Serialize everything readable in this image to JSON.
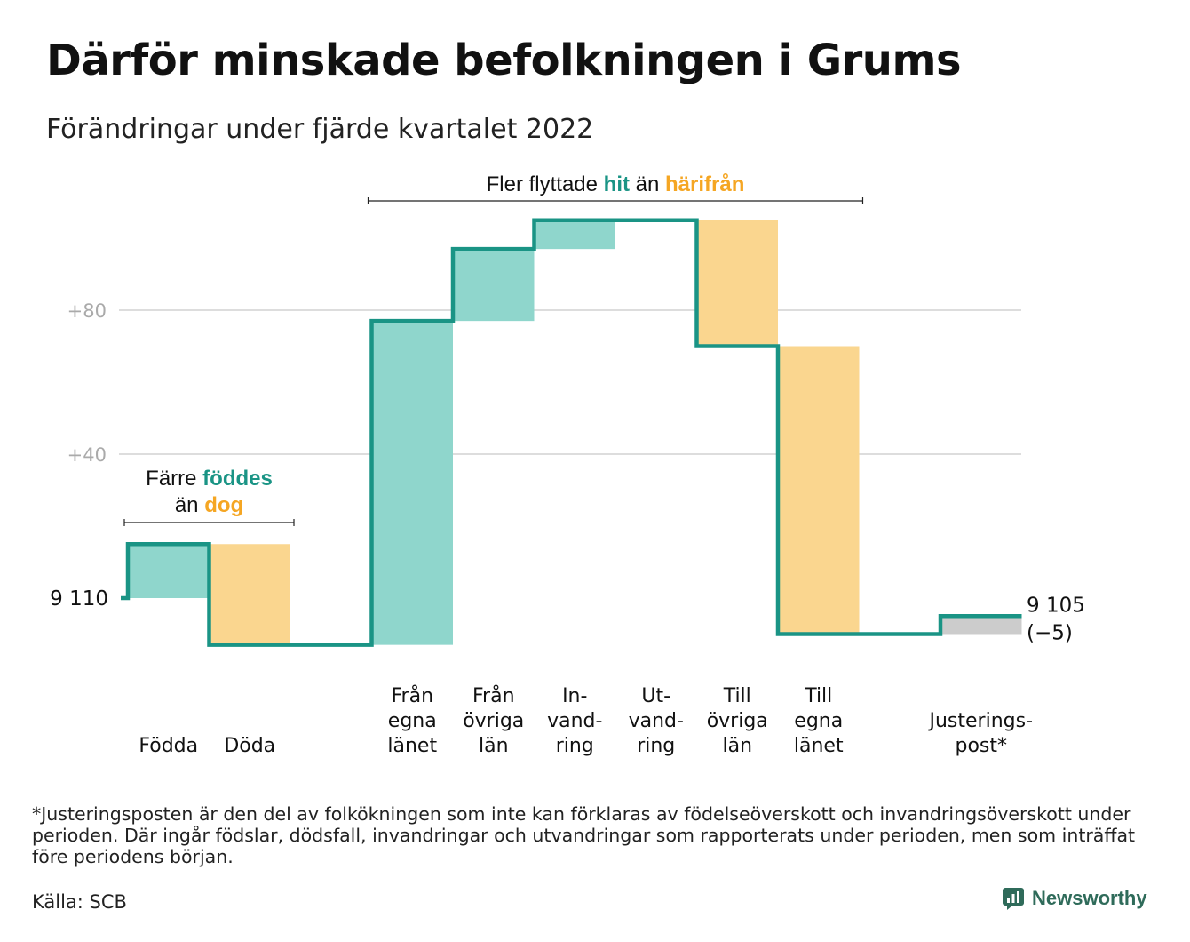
{
  "title": "Därför minskade befolkningen i Grums",
  "subtitle": "Förändringar under fjärde kvartalet 2022",
  "chart_data": {
    "type": "waterfall",
    "start_value": 9110,
    "start_label": "9 110",
    "end_label": "9 105",
    "end_change_label": "(−5)",
    "ylim": [
      -14,
      111
    ],
    "yticks": [
      {
        "value": 40,
        "label": "+40"
      },
      {
        "value": 80,
        "label": "+80"
      }
    ],
    "grid": true,
    "colors": {
      "hit": "#8fd6cc",
      "harifran": "#fad68f",
      "adjust": "#cccccc",
      "line": "#1a9485",
      "hit_text": "#1a9485",
      "harifran_text": "#f5a623"
    },
    "steps": [
      {
        "label": [
          "Födda"
        ],
        "change": 15,
        "kind": "hit"
      },
      {
        "label": [
          "Döda"
        ],
        "change": -28,
        "kind": "harifran"
      },
      {
        "label": [],
        "change": 0,
        "kind": "gap"
      },
      {
        "label": [
          "Från",
          "egna",
          "länet"
        ],
        "change": 90,
        "kind": "hit"
      },
      {
        "label": [
          "Från",
          "övriga",
          "län"
        ],
        "change": 20,
        "kind": "hit"
      },
      {
        "label": [
          "In-",
          "vand-",
          "ring"
        ],
        "change": 8,
        "kind": "hit"
      },
      {
        "label": [
          "Ut-",
          "vand-",
          "ring"
        ],
        "change": 0,
        "kind": "harifran"
      },
      {
        "label": [
          "Till",
          "övriga",
          "län"
        ],
        "change": -35,
        "kind": "harifran"
      },
      {
        "label": [
          "Till",
          "egna",
          "länet"
        ],
        "change": -80,
        "kind": "harifran"
      },
      {
        "label": [],
        "change": 0,
        "kind": "gap"
      },
      {
        "label": [
          "Justerings-",
          "post*"
        ],
        "change": 5,
        "kind": "adjust"
      }
    ],
    "annotations": [
      {
        "steps": [
          0,
          1
        ],
        "lines": [
          [
            {
              "text": "Färre ",
              "style": "plain"
            },
            {
              "text": "föddes",
              "style": "hit"
            }
          ],
          [
            {
              "text": "än ",
              "style": "plain"
            },
            {
              "text": "dog",
              "style": "harifran"
            }
          ]
        ]
      },
      {
        "steps": [
          3,
          8
        ],
        "lines": [
          [
            {
              "text": "Fler flyttade ",
              "style": "plain"
            },
            {
              "text": "hit",
              "style": "hit"
            },
            {
              "text": " än ",
              "style": "plain"
            },
            {
              "text": "härifrån",
              "style": "harifran"
            }
          ]
        ]
      }
    ]
  },
  "footnote": "*Justeringsposten är den del av folkökningen som inte kan förklaras av födelseöverskott och invandringsöverskott under perioden. Där ingår födslar, dödsfall, invandringar och utvandringar som rapporterats under perioden, men som inträffat före periodens början.",
  "source": "Källa: SCB",
  "brand": {
    "name": "Newsworthy",
    "color": "#2f6b5a",
    "icon": "newsworthy-logo-icon"
  }
}
